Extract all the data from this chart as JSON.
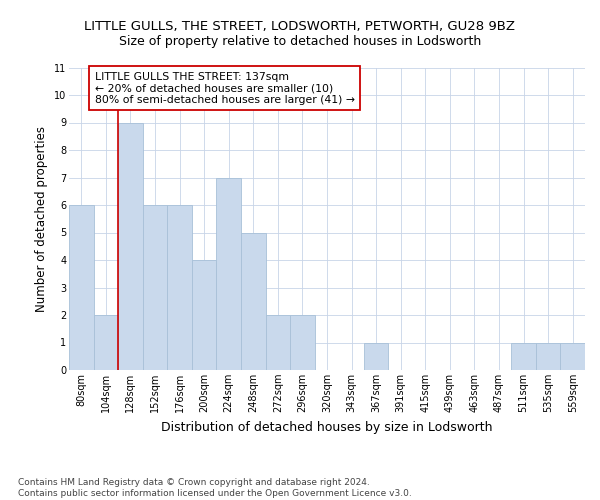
{
  "title": "LITTLE GULLS, THE STREET, LODSWORTH, PETWORTH, GU28 9BZ",
  "subtitle": "Size of property relative to detached houses in Lodsworth",
  "xlabel": "Distribution of detached houses by size in Lodsworth",
  "ylabel": "Number of detached properties",
  "bar_color": "#c9d9ec",
  "bar_edgecolor": "#a8c0d8",
  "grid_color": "#c8d4e8",
  "vline_color": "#cc0000",
  "annotation_text": "LITTLE GULLS THE STREET: 137sqm\n← 20% of detached houses are smaller (10)\n80% of semi-detached houses are larger (41) →",
  "annotation_box_edgecolor": "#cc0000",
  "footnote": "Contains HM Land Registry data © Crown copyright and database right 2024.\nContains public sector information licensed under the Open Government Licence v3.0.",
  "bins": [
    "80sqm",
    "104sqm",
    "128sqm",
    "152sqm",
    "176sqm",
    "200sqm",
    "224sqm",
    "248sqm",
    "272sqm",
    "296sqm",
    "320sqm",
    "343sqm",
    "367sqm",
    "391sqm",
    "415sqm",
    "439sqm",
    "463sqm",
    "487sqm",
    "511sqm",
    "535sqm",
    "559sqm"
  ],
  "values": [
    6,
    2,
    9,
    6,
    6,
    4,
    7,
    5,
    2,
    2,
    0,
    0,
    1,
    0,
    0,
    0,
    0,
    0,
    1,
    1,
    1
  ],
  "ylim": [
    0,
    11
  ],
  "yticks": [
    0,
    1,
    2,
    3,
    4,
    5,
    6,
    7,
    8,
    9,
    10,
    11
  ],
  "title_fontsize": 9.5,
  "subtitle_fontsize": 9,
  "tick_fontsize": 7,
  "ylabel_fontsize": 8.5,
  "xlabel_fontsize": 9,
  "annotation_fontsize": 7.8,
  "footnote_fontsize": 6.5
}
